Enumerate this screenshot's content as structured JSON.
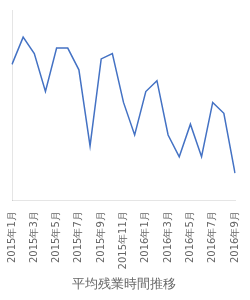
{
  "chart_data": {
    "type": "line",
    "xlabel": "平均残業時間推移",
    "categories": [
      "2015年1月",
      null,
      "2015年3月",
      null,
      "2015年5月",
      null,
      "2015年7月",
      null,
      "2015年9月",
      null,
      "2015年11月",
      null,
      "2016年1月",
      null,
      "2016年3月",
      null,
      "2016年5月",
      null,
      "2016年7月",
      null,
      "2016年9月"
    ],
    "values": [
      55,
      60,
      57,
      50,
      58,
      58,
      54,
      40,
      56,
      57,
      48,
      42,
      50,
      52,
      42,
      38,
      44,
      38,
      48,
      46,
      35
    ],
    "color": "#4472C4",
    "ylim": [
      30,
      65
    ],
    "grid": false,
    "tick_labels": "x"
  }
}
